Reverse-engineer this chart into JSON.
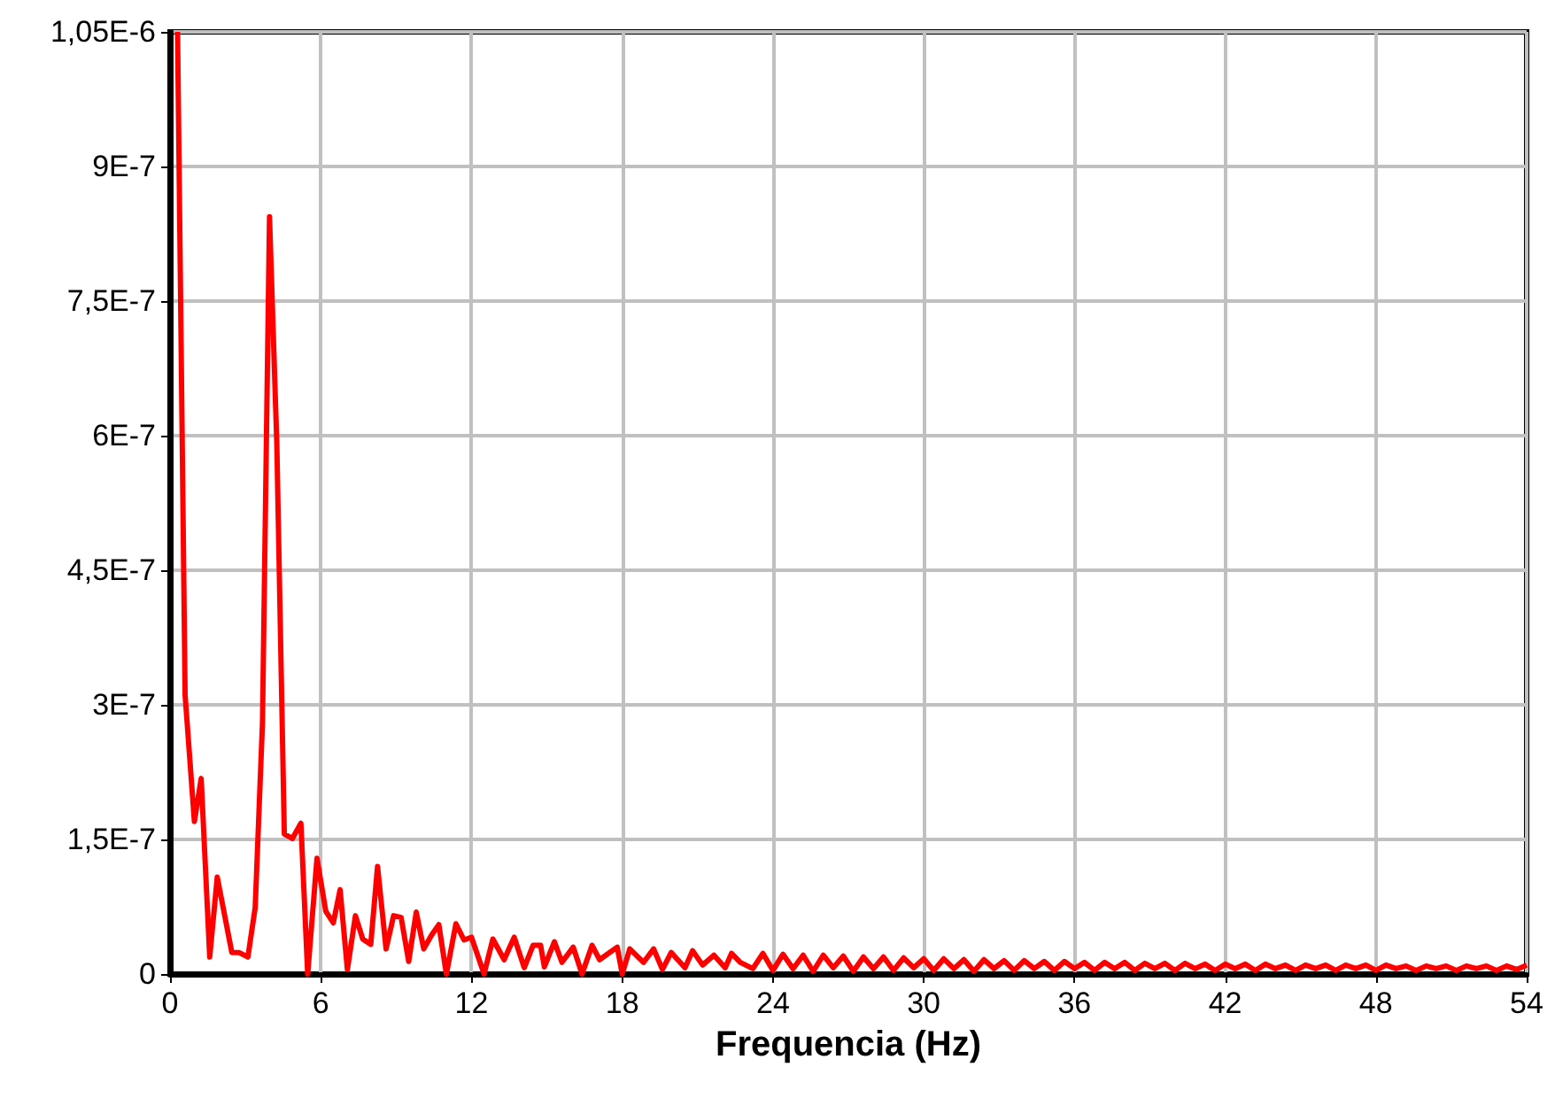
{
  "chart_data": {
    "type": "line",
    "xlabel": "Frequencia (Hz)",
    "xlim": [
      0,
      54
    ],
    "xticks": [
      0,
      6,
      12,
      18,
      24,
      30,
      36,
      42,
      48,
      54
    ],
    "ylim": [
      0,
      1.05e-06
    ],
    "yticks": [
      0,
      {
        "value": 1.5e-07,
        "label": "1,5E-7"
      },
      {
        "value": 3e-07,
        "label": "3E-7"
      },
      {
        "value": 4.5e-07,
        "label": "4,5E-7"
      },
      {
        "value": 6e-07,
        "label": "6E-7"
      },
      {
        "value": 7.5e-07,
        "label": "7,5E-7"
      },
      {
        "value": 9e-07,
        "label": "9E-7"
      },
      {
        "value": 1.05e-06,
        "label": "1,05E-6"
      }
    ],
    "grid": true,
    "marker": "none",
    "line_style": "solid",
    "series": [
      {
        "color": "#ff0000",
        "x": [
          0.3,
          0.6,
          0.97,
          1.24,
          1.58,
          1.88,
          2.46,
          2.74,
          3.1,
          3.39,
          3.68,
          3.96,
          4.25,
          4.55,
          4.87,
          5.21,
          5.48,
          5.85,
          6.2,
          6.5,
          6.77,
          7.06,
          7.38,
          7.67,
          7.99,
          8.26,
          8.6,
          8.9,
          9.2,
          9.5,
          9.8,
          10.1,
          10.4,
          10.7,
          11.0,
          11.38,
          11.7,
          12.0,
          12.5,
          12.85,
          13.3,
          13.7,
          14.1,
          14.45,
          14.75,
          14.9,
          15.3,
          15.6,
          16.05,
          16.4,
          16.8,
          17.1,
          17.8,
          18.0,
          18.3,
          18.85,
          19.25,
          19.6,
          19.95,
          20.5,
          20.8,
          21.2,
          21.65,
          22.1,
          22.35,
          22.7,
          23.2,
          23.6,
          24.0,
          24.4,
          24.8,
          25.2,
          25.6,
          26.0,
          26.4,
          26.8,
          27.2,
          27.6,
          28.0,
          28.4,
          28.8,
          29.2,
          29.6,
          30.0,
          30.4,
          30.8,
          31.2,
          31.6,
          32.0,
          32.4,
          32.8,
          33.2,
          33.6,
          34.0,
          34.4,
          34.8,
          35.2,
          35.6,
          36.0,
          36.4,
          36.8,
          37.2,
          37.6,
          38.0,
          38.4,
          38.8,
          39.2,
          39.6,
          40.0,
          40.4,
          40.8,
          41.2,
          41.6,
          42.0,
          42.4,
          42.8,
          43.2,
          43.6,
          44.0,
          44.4,
          44.8,
          45.2,
          45.6,
          46.0,
          46.4,
          46.8,
          47.2,
          47.6,
          48.0,
          48.4,
          48.8,
          49.2,
          49.6,
          50.0,
          50.4,
          50.8,
          51.2,
          51.6,
          52.0,
          52.4,
          52.8,
          53.2,
          53.6,
          54.0
        ],
        "values": [
          1.05e-06,
          3.11e-07,
          1.7e-07,
          2.18e-07,
          1.9e-08,
          1.08e-07,
          2.4e-08,
          2.4e-08,
          1.9e-08,
          7.4e-08,
          2.8e-07,
          8.44e-07,
          5.92e-07,
          1.56e-07,
          1.51e-07,
          1.68e-07,
          0,
          1.29e-07,
          7e-08,
          5.7e-08,
          9.4e-08,
          5e-09,
          6.5e-08,
          3.9e-08,
          3.3e-08,
          1.2e-07,
          2.8e-08,
          6.5e-08,
          6.3e-08,
          1.4e-08,
          6.9e-08,
          2.8e-08,
          4.3e-08,
          5.5e-08,
          0,
          5.6e-08,
          3.8e-08,
          4.1e-08,
          0,
          3.9e-08,
          1.6e-08,
          4.1e-08,
          7e-09,
          3.2e-08,
          3.2e-08,
          8e-09,
          3.6e-08,
          1.3e-08,
          3e-08,
          0,
          3.2e-08,
          1.6e-08,
          3e-08,
          0,
          2.8e-08,
          1.3e-08,
          2.8e-08,
          5e-09,
          2.4e-08,
          7e-09,
          2.6e-08,
          1e-08,
          2.1e-08,
          7e-09,
          2.3e-08,
          1.3e-08,
          6e-09,
          2.3e-08,
          4e-09,
          2.2e-08,
          6e-09,
          2.1e-08,
          3e-09,
          2.1e-08,
          7e-09,
          2e-08,
          3e-09,
          1.9e-08,
          6e-09,
          1.9e-08,
          4e-09,
          1.8e-08,
          7e-09,
          1.7e-08,
          4e-09,
          1.7e-08,
          6e-09,
          1.6e-08,
          3e-09,
          1.6e-08,
          6e-09,
          1.5e-08,
          4e-09,
          1.5e-08,
          6e-09,
          1.4e-08,
          4e-09,
          1.4e-08,
          6e-09,
          1.3e-08,
          4e-09,
          1.3e-08,
          6e-09,
          1.3e-08,
          4e-09,
          1.2e-08,
          6e-09,
          1.2e-08,
          4e-09,
          1.2e-08,
          6e-09,
          1.1e-08,
          4e-09,
          1.1e-08,
          6e-09,
          1.1e-08,
          4e-09,
          1.1e-08,
          6e-09,
          1e-08,
          4e-09,
          1e-08,
          6e-09,
          1e-08,
          4e-09,
          1e-08,
          6e-09,
          1e-08,
          4e-09,
          1e-08,
          6e-09,
          9e-09,
          4e-09,
          9e-09,
          6e-09,
          9e-09,
          4e-09,
          9e-09,
          6e-09,
          9e-09,
          4e-09,
          9e-09,
          5e-09,
          1e-08
        ]
      }
    ]
  }
}
